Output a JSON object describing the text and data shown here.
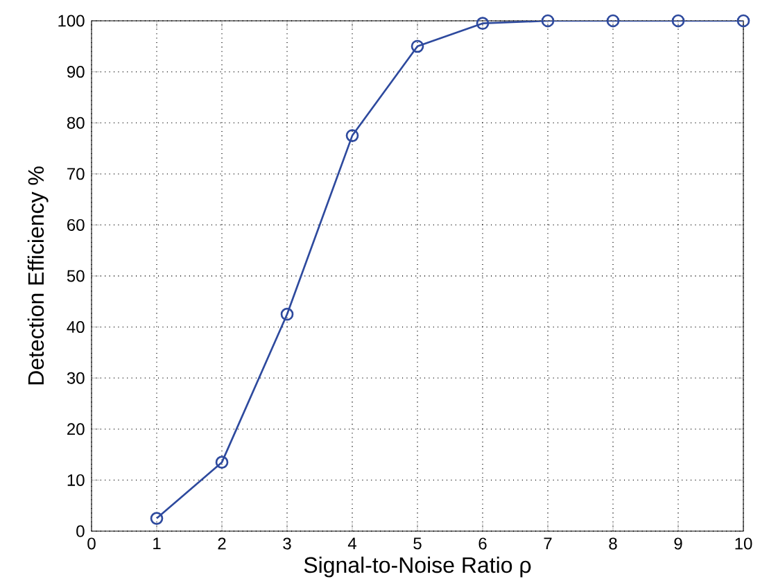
{
  "chart_data": {
    "type": "line",
    "xlabel": "Signal-to-Noise Ratio ρ",
    "ylabel": "Detection Efficiency %",
    "x": [
      1,
      2,
      3,
      4,
      5,
      6,
      7,
      8,
      9,
      10
    ],
    "series": [
      {
        "color": "#2e4a9e",
        "values": [
          2.5,
          13.5,
          42.5,
          77.5,
          95,
          99.5,
          100,
          100,
          100,
          100
        ]
      }
    ],
    "xlim": [
      0,
      10
    ],
    "ylim": [
      0,
      100
    ],
    "xticks": [
      0,
      1,
      2,
      3,
      4,
      5,
      6,
      7,
      8,
      9,
      10
    ],
    "yticks": [
      0,
      10,
      20,
      30,
      40,
      50,
      60,
      70,
      80,
      90,
      100
    ],
    "grid": true,
    "marker": "circle",
    "line_style": "solid"
  }
}
